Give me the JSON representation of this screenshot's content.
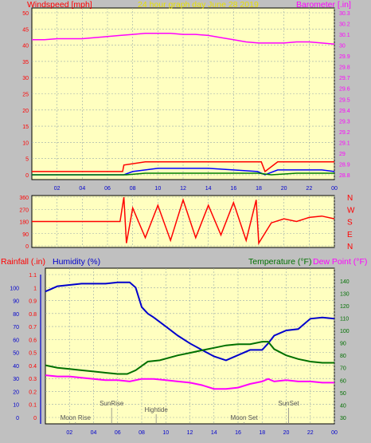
{
  "chart_data": [
    {
      "type": "line",
      "title": "24 hour graph day   June 28 2019",
      "left_axis": {
        "label": "Windspeed [mph]",
        "ticks": [
          0,
          5,
          10,
          15,
          20,
          25,
          30,
          35,
          40,
          45,
          50
        ],
        "range": [
          0,
          50
        ]
      },
      "right_axis": {
        "label": "Barometer [.in]",
        "ticks": [
          "28.8",
          "28.9",
          "29",
          "29.1",
          "29.2",
          "29.3",
          "29.4",
          "29.5",
          "29.6",
          "29.7",
          "29.8",
          "29.9",
          "30",
          "30.1",
          "30.2",
          "30.3"
        ],
        "range": [
          28.8,
          30.3
        ]
      },
      "x_ticks": [
        "02",
        "04",
        "06",
        "08",
        "10",
        "12",
        "14",
        "16",
        "18",
        "20",
        "22",
        "00"
      ],
      "x_range": [
        0,
        24
      ],
      "grid": true,
      "series": [
        {
          "color": "#ff00ff",
          "axis": "right",
          "x": [
            0,
            1,
            2,
            3,
            4,
            5,
            6,
            7,
            8,
            9,
            10,
            11,
            12,
            13,
            14,
            15,
            16,
            17,
            18,
            19,
            20,
            21,
            22,
            23,
            24
          ],
          "y": [
            30.05,
            30.05,
            30.06,
            30.06,
            30.06,
            30.07,
            30.08,
            30.09,
            30.1,
            30.11,
            30.11,
            30.11,
            30.1,
            30.1,
            30.09,
            30.07,
            30.05,
            30.03,
            30.02,
            30.02,
            30.02,
            30.03,
            30.03,
            30.02,
            30.01
          ]
        },
        {
          "color": "#ff0000",
          "axis": "left",
          "x": [
            0,
            7.2,
            7.3,
            9,
            11,
            13,
            15,
            17,
            18.2,
            18.5,
            19.5,
            21,
            23,
            24
          ],
          "y": [
            1,
            1,
            3,
            4,
            4,
            4,
            4,
            4,
            4,
            1,
            4,
            4,
            4,
            4
          ]
        },
        {
          "color": "#0000ff",
          "axis": "left",
          "x": [
            0,
            7.3,
            8,
            10,
            12,
            14,
            16,
            17.9,
            18.5,
            19.5,
            21,
            23,
            24
          ],
          "y": [
            0,
            0,
            1,
            2,
            2,
            2,
            1.5,
            1,
            0,
            1.5,
            1.5,
            1.5,
            1
          ]
        },
        {
          "color": "#008000",
          "axis": "left",
          "x": [
            0,
            7.5,
            9,
            12,
            15,
            18,
            19,
            21,
            24
          ],
          "y": [
            0,
            0,
            0.5,
            0.5,
            0.5,
            0.5,
            0,
            0.5,
            0.5
          ]
        }
      ]
    },
    {
      "type": "line",
      "right_labels": [
        "N",
        "W",
        "S",
        "E",
        "N"
      ],
      "left_ticks": [
        0,
        90,
        180,
        270,
        360
      ],
      "range": [
        0,
        360
      ],
      "x_range": [
        0,
        24
      ],
      "grid": true,
      "series": [
        {
          "color": "#ff0000",
          "x": [
            0,
            7,
            7.3,
            7.5,
            8,
            9,
            10,
            11,
            12,
            13,
            14,
            15,
            16,
            17,
            17.8,
            18,
            19,
            20,
            21,
            22,
            23,
            24
          ],
          "y": [
            180,
            180,
            360,
            20,
            280,
            60,
            300,
            40,
            340,
            60,
            300,
            80,
            320,
            40,
            340,
            20,
            170,
            200,
            180,
            210,
            220,
            200
          ]
        }
      ]
    },
    {
      "type": "line",
      "labels": {
        "rainfall": "Rainfall (.in)",
        "humidity": "Humidity (%)",
        "temperature": "Temperature (°F)",
        "dewpoint": "Dew Point (°F)"
      },
      "rain_axis": {
        "ticks": [
          "0",
          "0.1",
          "0.2",
          "0.3",
          "0.4",
          "0.5",
          "0.6",
          "0.7",
          "0.8",
          "0.9",
          "1",
          "1.1"
        ],
        "range": [
          0,
          1.1
        ]
      },
      "humidity_axis": {
        "ticks": [
          0,
          10,
          20,
          30,
          40,
          50,
          60,
          70,
          80,
          90,
          100
        ],
        "range": [
          0,
          110
        ]
      },
      "temp_axis": {
        "ticks": [
          30,
          40,
          50,
          60,
          70,
          80,
          90,
          100,
          110,
          120,
          130,
          140
        ],
        "range": [
          30,
          145
        ]
      },
      "x_ticks": [
        "02",
        "04",
        "06",
        "08",
        "10",
        "12",
        "14",
        "16",
        "18",
        "20",
        "22",
        "00"
      ],
      "x_range": [
        0,
        24
      ],
      "events": [
        {
          "label": "SunRise",
          "x": 5.5,
          "row": "upper"
        },
        {
          "label": "Hightide",
          "x": 9.2,
          "row": "middle"
        },
        {
          "label": "Moon Rise",
          "x": 2.5,
          "row": "lower"
        },
        {
          "label": "Moon Set",
          "x": 16.5,
          "row": "lower"
        },
        {
          "label": "SunSet",
          "x": 20.2,
          "row": "upper"
        }
      ],
      "series": [
        {
          "color": "#0000cc",
          "axis": "humidity",
          "x": [
            0,
            0.5,
            1,
            2,
            3,
            4,
            5,
            6,
            7,
            7.5,
            8,
            8.5,
            9,
            10,
            11,
            12,
            13,
            14,
            15,
            16,
            17,
            18,
            18.5,
            19,
            20,
            21,
            22,
            23,
            24
          ],
          "y": [
            97,
            99,
            101,
            102,
            103,
            103,
            103,
            104,
            104,
            100,
            85,
            80,
            77,
            70,
            63,
            57,
            52,
            47,
            44,
            48,
            52,
            52,
            57,
            63,
            67,
            68,
            76,
            77,
            76
          ]
        },
        {
          "color": "#007000",
          "axis": "temp",
          "x": [
            0,
            1,
            2,
            3,
            4,
            5,
            6,
            6.8,
            7.5,
            8.5,
            9.5,
            11,
            12,
            13,
            14,
            15,
            16,
            17,
            18,
            18.5,
            19,
            20,
            21,
            22,
            23,
            24
          ],
          "y": [
            72,
            70,
            69,
            68,
            67,
            66,
            65,
            65,
            68,
            75,
            76,
            80,
            82,
            84,
            86,
            88,
            89,
            89,
            91,
            91,
            85,
            80,
            77,
            75,
            74,
            74
          ]
        },
        {
          "color": "#ff00ff",
          "axis": "temp",
          "x": [
            0,
            1,
            2,
            3,
            4,
            5,
            6,
            7,
            8,
            9,
            10,
            11,
            12,
            13,
            14,
            15,
            16,
            17,
            18,
            18.5,
            19,
            20,
            21,
            22,
            23,
            24
          ],
          "y": [
            64,
            63,
            63,
            62,
            61,
            60,
            60,
            59,
            61,
            61,
            60,
            59,
            58,
            56,
            53,
            53,
            54,
            57,
            59,
            61,
            59,
            60,
            59,
            59,
            58,
            58
          ]
        }
      ]
    }
  ]
}
